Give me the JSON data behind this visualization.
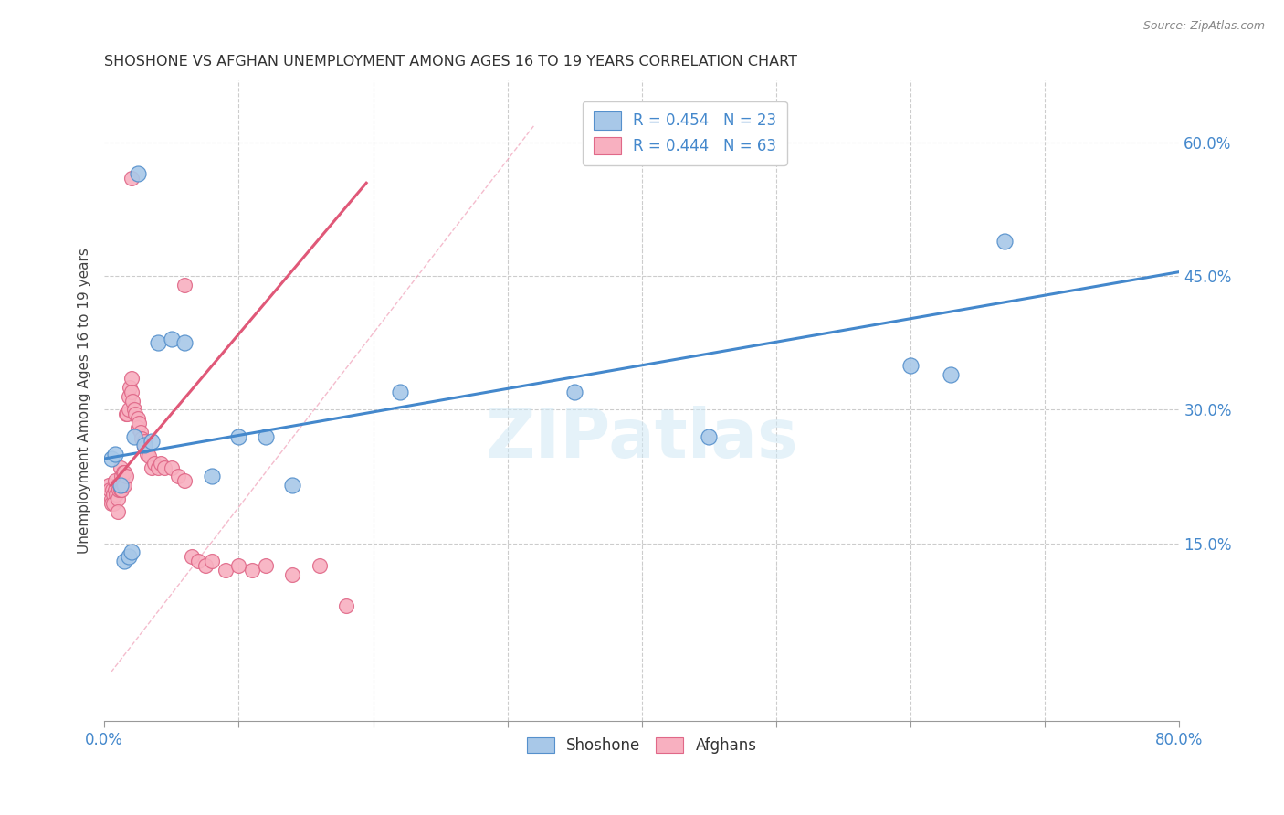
{
  "title": "SHOSHONE VS AFGHAN UNEMPLOYMENT AMONG AGES 16 TO 19 YEARS CORRELATION CHART",
  "source": "Source: ZipAtlas.com",
  "ylabel": "Unemployment Among Ages 16 to 19 years",
  "xlim": [
    0.0,
    0.8
  ],
  "ylim": [
    -0.05,
    0.67
  ],
  "xtick_vals": [
    0.0,
    0.1,
    0.2,
    0.3,
    0.4,
    0.5,
    0.6,
    0.7,
    0.8
  ],
  "xticklabels": [
    "0.0%",
    "",
    "",
    "",
    "",
    "",
    "",
    "",
    "80.0%"
  ],
  "yticks_right": [
    0.15,
    0.3,
    0.45,
    0.6
  ],
  "ytick_right_labels": [
    "15.0%",
    "30.0%",
    "45.0%",
    "60.0%"
  ],
  "shoshone_color": "#a8c8e8",
  "shoshone_edge": "#5590cc",
  "afghan_color": "#f8b0c0",
  "afghan_edge": "#e06888",
  "blue_line_x": [
    0.0,
    0.8
  ],
  "blue_line_y": [
    0.245,
    0.455
  ],
  "pink_line_x": [
    0.005,
    0.195
  ],
  "pink_line_y": [
    0.215,
    0.555
  ],
  "ref_line_x": [
    0.005,
    0.32
  ],
  "ref_line_y": [
    0.005,
    0.62
  ],
  "watermark": "ZIPatlas",
  "legend_text1": "R = 0.454   N = 23",
  "legend_text2": "R = 0.444   N = 63",
  "shoshone_x": [
    0.005,
    0.008,
    0.012,
    0.015,
    0.018,
    0.02,
    0.022,
    0.025,
    0.03,
    0.035,
    0.04,
    0.05,
    0.06,
    0.08,
    0.1,
    0.12,
    0.14,
    0.22,
    0.35,
    0.45,
    0.6,
    0.63,
    0.67
  ],
  "shoshone_y": [
    0.245,
    0.25,
    0.215,
    0.13,
    0.135,
    0.14,
    0.27,
    0.565,
    0.26,
    0.265,
    0.375,
    0.38,
    0.375,
    0.225,
    0.27,
    0.27,
    0.215,
    0.32,
    0.32,
    0.27,
    0.35,
    0.34,
    0.49
  ],
  "afghan_x": [
    0.003,
    0.004,
    0.005,
    0.005,
    0.006,
    0.007,
    0.007,
    0.008,
    0.008,
    0.009,
    0.01,
    0.01,
    0.01,
    0.011,
    0.012,
    0.012,
    0.013,
    0.013,
    0.014,
    0.014,
    0.015,
    0.015,
    0.016,
    0.016,
    0.017,
    0.018,
    0.018,
    0.019,
    0.02,
    0.02,
    0.021,
    0.022,
    0.023,
    0.025,
    0.025,
    0.026,
    0.027,
    0.028,
    0.03,
    0.03,
    0.032,
    0.033,
    0.035,
    0.037,
    0.04,
    0.042,
    0.045,
    0.05,
    0.055,
    0.06,
    0.065,
    0.07,
    0.075,
    0.08,
    0.09,
    0.1,
    0.11,
    0.12,
    0.14,
    0.16,
    0.18,
    0.06,
    0.02
  ],
  "afghan_y": [
    0.215,
    0.21,
    0.2,
    0.195,
    0.21,
    0.205,
    0.195,
    0.21,
    0.22,
    0.205,
    0.215,
    0.2,
    0.185,
    0.21,
    0.21,
    0.235,
    0.21,
    0.225,
    0.215,
    0.23,
    0.215,
    0.23,
    0.225,
    0.295,
    0.295,
    0.3,
    0.315,
    0.325,
    0.335,
    0.32,
    0.31,
    0.3,
    0.295,
    0.29,
    0.28,
    0.285,
    0.275,
    0.268,
    0.265,
    0.258,
    0.25,
    0.248,
    0.235,
    0.24,
    0.235,
    0.24,
    0.235,
    0.235,
    0.225,
    0.22,
    0.135,
    0.13,
    0.125,
    0.13,
    0.12,
    0.125,
    0.12,
    0.125,
    0.115,
    0.125,
    0.08,
    0.44,
    0.56
  ]
}
